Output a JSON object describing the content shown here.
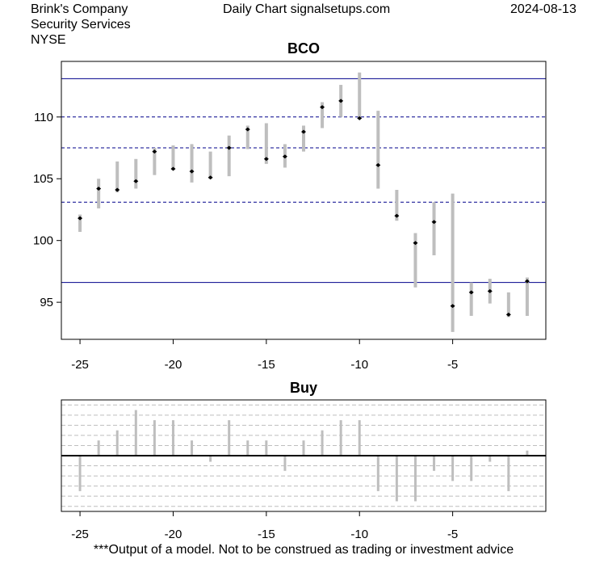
{
  "header": {
    "company": "Brink's Company",
    "sector": "Security Services",
    "exchange": "NYSE",
    "site": "Daily Chart signalsetups.com",
    "date": "2024-08-13"
  },
  "footer": {
    "disclaimer": "***Output of a model. Not to be construed as trading or investment advice"
  },
  "colors": {
    "bar": "#bebebe",
    "level_line": "#00008b",
    "marker": "#000000",
    "zero_line": "#000000",
    "grid": "#bebebe"
  },
  "chart_data": [
    {
      "type": "range-bar",
      "title": "BCO",
      "xlim": [
        -26,
        0
      ],
      "ylim": [
        92,
        114.5
      ],
      "x_ticks": [
        -25,
        -20,
        -15,
        -10,
        -5
      ],
      "y_ticks": [
        95,
        100,
        105,
        110
      ],
      "solid_levels": [
        113.1,
        96.6
      ],
      "dashed_levels": [
        110.0,
        107.5,
        103.1
      ],
      "bars": [
        {
          "x": -25,
          "low": 100.7,
          "high": 102.1,
          "close": 101.8
        },
        {
          "x": -24,
          "low": 102.6,
          "high": 105.0,
          "close": 104.2
        },
        {
          "x": -23,
          "low": 103.9,
          "high": 106.4,
          "close": 104.1
        },
        {
          "x": -22,
          "low": 104.2,
          "high": 106.6,
          "close": 104.8
        },
        {
          "x": -21,
          "low": 105.3,
          "high": 107.5,
          "close": 107.2
        },
        {
          "x": -20,
          "low": 105.7,
          "high": 107.7,
          "close": 105.8
        },
        {
          "x": -19,
          "low": 104.7,
          "high": 107.8,
          "close": 105.6
        },
        {
          "x": -18,
          "low": 105.0,
          "high": 107.2,
          "close": 105.1
        },
        {
          "x": -17,
          "low": 105.2,
          "high": 108.5,
          "close": 107.5
        },
        {
          "x": -16,
          "low": 107.4,
          "high": 109.3,
          "close": 109.0
        },
        {
          "x": -15,
          "low": 106.2,
          "high": 109.5,
          "close": 106.6
        },
        {
          "x": -14,
          "low": 105.9,
          "high": 107.8,
          "close": 106.8
        },
        {
          "x": -13,
          "low": 107.2,
          "high": 109.3,
          "close": 108.8
        },
        {
          "x": -12,
          "low": 109.1,
          "high": 111.2,
          "close": 110.8
        },
        {
          "x": -11,
          "low": 110.0,
          "high": 112.6,
          "close": 111.3
        },
        {
          "x": -10,
          "low": 109.9,
          "high": 113.6,
          "close": 109.9
        },
        {
          "x": -9,
          "low": 104.2,
          "high": 110.5,
          "close": 106.1
        },
        {
          "x": -8,
          "low": 101.6,
          "high": 104.1,
          "close": 102.0
        },
        {
          "x": -7,
          "low": 96.2,
          "high": 100.6,
          "close": 99.8
        },
        {
          "x": -6,
          "low": 98.8,
          "high": 103.1,
          "close": 101.5
        },
        {
          "x": -5,
          "low": 92.6,
          "high": 103.8,
          "close": 94.7
        },
        {
          "x": -4,
          "low": 93.9,
          "high": 96.6,
          "close": 95.8
        },
        {
          "x": -3,
          "low": 94.9,
          "high": 96.9,
          "close": 95.9
        },
        {
          "x": -2,
          "low": 93.8,
          "high": 95.8,
          "close": 94.0
        },
        {
          "x": -1,
          "low": 93.9,
          "high": 97.0,
          "close": 96.7
        }
      ]
    },
    {
      "type": "bar",
      "title": "Buy",
      "xlim": [
        -26,
        0
      ],
      "ylim": [
        -5.5,
        5.5
      ],
      "x_ticks": [
        -25,
        -20,
        -15,
        -10,
        -5
      ],
      "grid_levels": [
        -5,
        -4,
        -3,
        -2,
        -1,
        1,
        2,
        3,
        4,
        5
      ],
      "x": [
        -25,
        -24,
        -23,
        -22,
        -21,
        -20,
        -19,
        -18,
        -17,
        -16,
        -15,
        -14,
        -13,
        -12,
        -11,
        -10,
        -9,
        -8,
        -7,
        -6,
        -5,
        -4,
        -3,
        -2,
        -1
      ],
      "values": [
        -3.5,
        1.5,
        2.5,
        4.5,
        3.5,
        3.5,
        1.5,
        -0.6,
        3.5,
        1.5,
        1.5,
        -1.5,
        1.5,
        2.5,
        3.5,
        3.5,
        -3.5,
        -4.5,
        -4.5,
        -1.5,
        -2.5,
        -2.5,
        -0.6,
        -3.5,
        0.5
      ]
    }
  ]
}
